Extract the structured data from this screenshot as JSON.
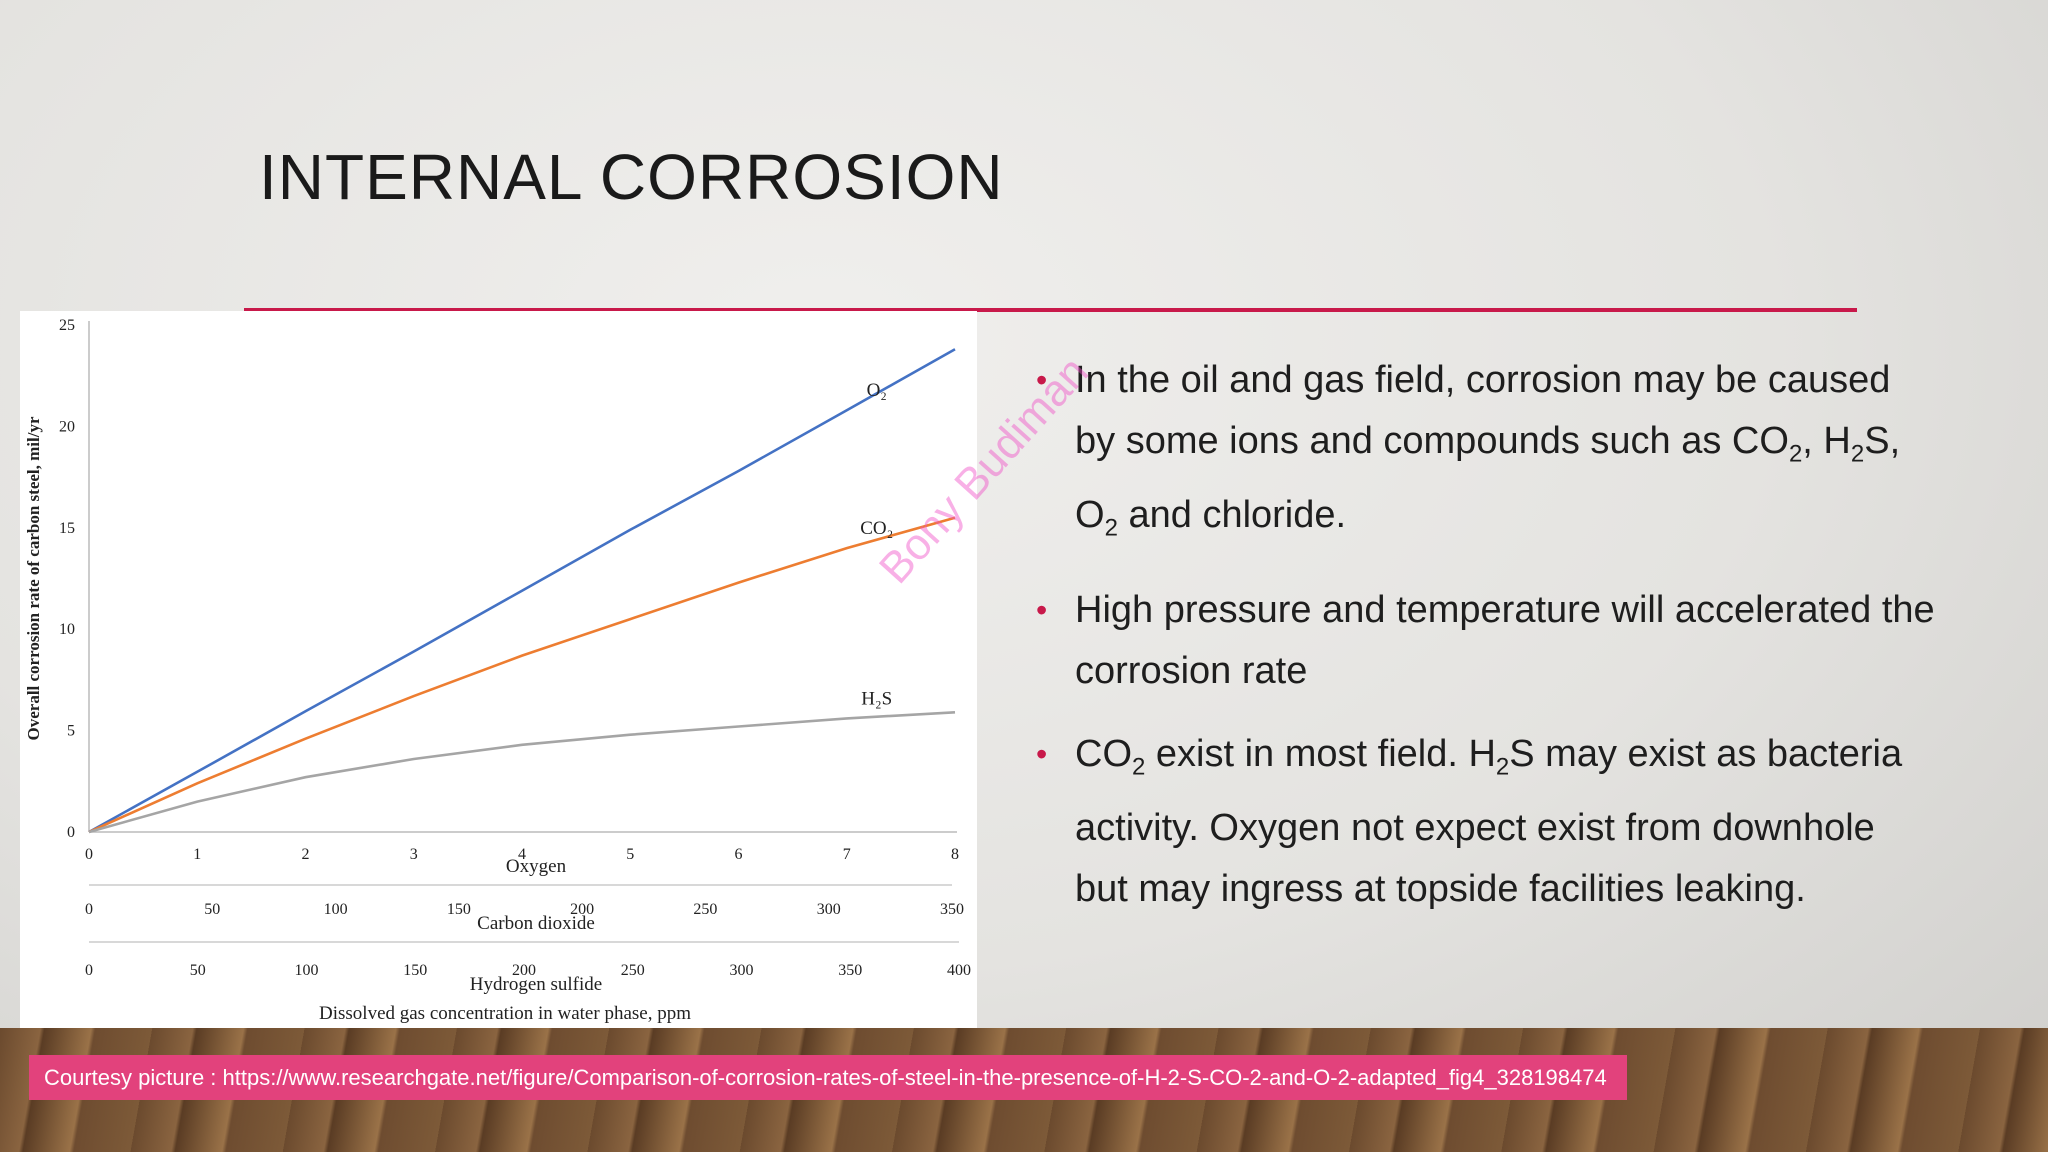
{
  "slide": {
    "title": "INTERNAL CORROSION",
    "bullets": [
      [
        "In the oil and gas field, corrosion may be caused by some ions and compounds such as CO",
        "2",
        ", H",
        "2",
        "S, O",
        "2",
        " and chloride."
      ],
      [
        "High pressure and temperature will accelerated the corrosion rate"
      ],
      [
        "CO",
        "2",
        " exist in most field. H",
        "2",
        "S may exist as bacteria activity. Oxygen not expect exist from downhole but may ingress at topside facilities leaking."
      ]
    ],
    "watermark": "Bony Budiman",
    "courtesy": "Courtesy picture : https://www.researchgate.net/figure/Comparison-of-corrosion-rates-of-steel-in-the-presence-of-H-2-S-CO-2-and-O-2-adapted_fig4_328198474"
  },
  "chart_data": {
    "type": "line",
    "ylabel": "Overall corrosion rate of carbon steel, mil/yr",
    "xlabel": "Dissolved gas concentration in water phase, ppm",
    "ylim": [
      0,
      25
    ],
    "yticks": [
      0,
      5,
      10,
      15,
      20,
      25
    ],
    "xlim": [
      0,
      8
    ],
    "x_axes": [
      {
        "label": "Oxygen",
        "lim": [
          0,
          8
        ],
        "ticks": [
          0,
          1,
          2,
          3,
          4,
          5,
          6,
          7,
          8
        ]
      },
      {
        "label": "Carbon dioxide",
        "lim": [
          0,
          350
        ],
        "ticks": [
          0,
          50,
          100,
          150,
          200,
          250,
          300,
          350
        ]
      },
      {
        "label": "Hydrogen sulfide",
        "lim": [
          0,
          400
        ],
        "ticks": [
          0,
          50,
          100,
          150,
          200,
          250,
          300,
          350,
          400
        ]
      }
    ],
    "x": [
      0,
      1,
      2,
      3,
      4,
      5,
      6,
      7,
      8
    ],
    "series": [
      {
        "name": "O₂",
        "color": "#4472c4",
        "values": [
          0,
          2.97,
          5.95,
          8.9,
          11.9,
          14.9,
          17.8,
          20.8,
          23.8
        ]
      },
      {
        "name": "CO₂",
        "color": "#ed7d31",
        "values": [
          0,
          2.4,
          4.6,
          6.7,
          8.7,
          10.5,
          12.3,
          14.0,
          15.5
        ]
      },
      {
        "name": "H₂S",
        "color": "#a5a5a5",
        "values": [
          0,
          1.5,
          2.7,
          3.6,
          4.3,
          4.8,
          5.2,
          5.6,
          5.9
        ]
      }
    ]
  }
}
